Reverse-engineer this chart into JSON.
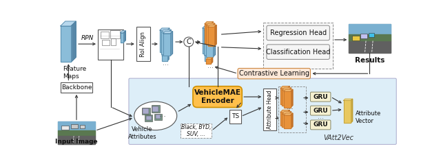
{
  "bg_color": "#ffffff",
  "light_blue_bg": "#ddeef8",
  "labels": {
    "feature_maps": "Feature\nMaps",
    "rpn": "RPN",
    "roi_align": "RoI Align",
    "concat": "C",
    "regression": "Regression Head",
    "classification": "Classification Head",
    "contrastive": "Contrastive Learning",
    "results": "Results",
    "backbone": "Backbone",
    "input_image": "Input Image",
    "vehicle_attr": "Vehicle\nAttributes",
    "attr_text": "Black, BYD,\nSUV, ...",
    "ts": "TS",
    "attribute_head": "Attribute Head",
    "gru": "GRU",
    "attr_vector": "Attribute\nVector",
    "vehiclemae": "VehicleMAE\nEncoder",
    "vatt2vec": "VAtt2Vec"
  }
}
